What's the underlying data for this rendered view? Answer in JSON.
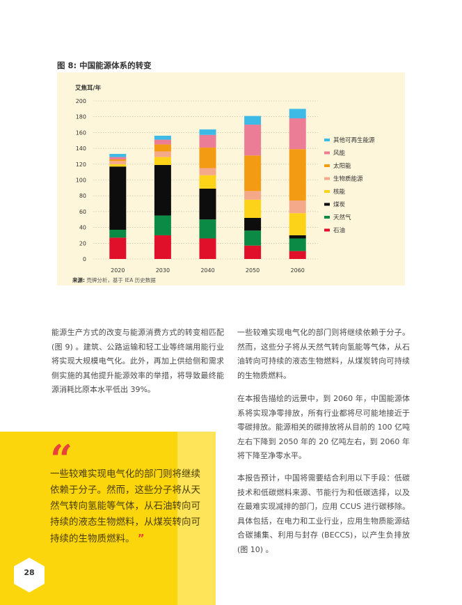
{
  "figure": {
    "title": "图 8: 中国能源体系的转变",
    "source_label": "来源:",
    "source_text": " 壳牌分析，基于 IEA 历史数据"
  },
  "chart_data": {
    "type": "bar",
    "stacked": true,
    "ylabel": "艾焦耳/年",
    "ylim": [
      0,
      200
    ],
    "yticks": [
      0,
      20,
      40,
      60,
      80,
      100,
      120,
      140,
      160,
      180,
      200
    ],
    "categories": [
      "2020",
      "2030",
      "2040",
      "2050",
      "2060"
    ],
    "grid": true,
    "legend_position": "right",
    "series": [
      {
        "name": "石油",
        "color": "#e0102a",
        "values": [
          27,
          30,
          26,
          17,
          10
        ]
      },
      {
        "name": "天然气",
        "color": "#0b8a46",
        "values": [
          10,
          25,
          24,
          19,
          16
        ]
      },
      {
        "name": "煤炭",
        "color": "#0d0d0d",
        "values": [
          80,
          64,
          39,
          16,
          4
        ]
      },
      {
        "name": "核能",
        "color": "#fdd31a",
        "values": [
          3,
          10,
          17,
          23,
          28
        ]
      },
      {
        "name": "生物质能源",
        "color": "#f5a98b",
        "values": [
          4,
          7,
          9,
          11,
          16
        ]
      },
      {
        "name": "太阳能",
        "color": "#f29b13",
        "values": [
          2,
          9,
          26,
          45,
          65
        ]
      },
      {
        "name": "风能",
        "color": "#eb7d96",
        "values": [
          3,
          6,
          16,
          39,
          39
        ]
      },
      {
        "name": "其他可再生能源",
        "color": "#3ebae6",
        "values": [
          4,
          5,
          7,
          11,
          12
        ]
      }
    ]
  },
  "left_paragraph": "能源生产方式的改变与能源消费方式的转变相匹配 (图 9) 。建筑、公路运输和轻工业等终端用能行业将实现大规模电气化。此外，再加上供给侧和需求侧实施的其他提升能源效率的举措，将导致最终能源消耗比原本水平低出 39%。",
  "right_paragraphs": [
    "一些较难实现电气化的部门则将继续依赖于分子。然而，这些分子将从天然气转向氢能等气体，从石油转向可持续的液态生物燃料，从煤炭转向可持续的生物质燃料。",
    "在本报告描绘的远景中，到 2060 年，中国能源体系将实现净零排放，所有行业都将尽可能地接近于零碳排放。能源相关的碳排放将从目前的 100 亿吨左右下降到 2050 年的 20 亿吨左右，到 2060 年将下降至净零水平。",
    "本报告预计，中国将需要结合利用以下手段：低碳技术和低碳燃料来源、节能行为和低碳选择，以及在最难实现减排的部门，应用 CCUS 进行碳移除。具体包括，在电力和工业行业，应用生物质能源结合碳捕集、利用与封存 (BECCS)，以产生负排放 (图 10) 。"
  ],
  "quote": {
    "open_mark": "“",
    "text": "一些较难实现电气化的部门则将继续依赖于分子。然而，这些分子将从天然气转向氢能等气体，从石油转向可持续的液态生物燃料，从煤炭转向可持续的生物质燃料。",
    "close_mark": "”"
  },
  "page_number": "28"
}
